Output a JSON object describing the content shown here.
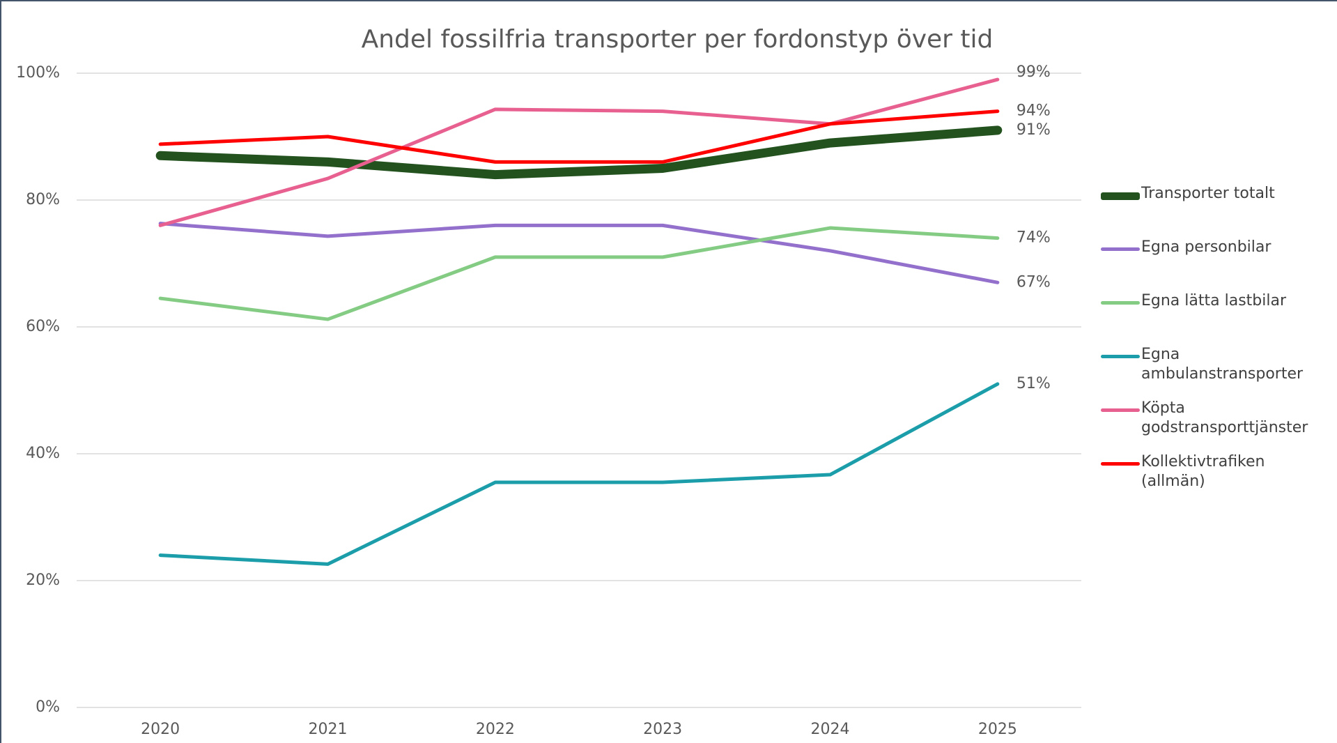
{
  "chart_data": {
    "type": "line",
    "title": "Andel fossilfria transporter per fordonstyp över tid",
    "categories": [
      "2020",
      "2021",
      "2022",
      "2023",
      "2024",
      "2025"
    ],
    "series": [
      {
        "name": "Transporter totalt",
        "color": "#23521f",
        "values": [
          87,
          86,
          84,
          85,
          89,
          91
        ],
        "value_labels": [
          null,
          null,
          null,
          null,
          null,
          "91%"
        ]
      },
      {
        "name": "Egna personbilar",
        "color": "#9370cc",
        "values": [
          76.3,
          74.3,
          76,
          76,
          72,
          67
        ],
        "value_labels": [
          null,
          null,
          null,
          null,
          null,
          "67%"
        ]
      },
      {
        "name": "Egna lätta lastbilar",
        "color": "#84cc84",
        "values": [
          64.5,
          61.2,
          71,
          71,
          75.6,
          74
        ],
        "value_labels": [
          null,
          null,
          null,
          null,
          null,
          "74%"
        ]
      },
      {
        "name": "Egna ambulanstransporter",
        "color": "#1b9eaa",
        "values": [
          24,
          22.6,
          35.5,
          35.5,
          36.7,
          51
        ],
        "value_labels": [
          null,
          null,
          null,
          null,
          null,
          "51%"
        ]
      },
      {
        "name": "Köpta godstransporttjänster",
        "color": "#e8608f",
        "values": [
          76,
          83.4,
          94.3,
          94,
          92,
          99
        ],
        "value_labels": [
          null,
          null,
          null,
          null,
          null,
          "99%"
        ]
      },
      {
        "name": "Kollektivtrafiken (allmän)",
        "color": "#ff0000",
        "values": [
          88.8,
          90,
          86,
          86,
          92,
          94
        ],
        "value_labels": [
          null,
          null,
          null,
          null,
          null,
          "94%"
        ]
      }
    ],
    "ylim": [
      0,
      100
    ],
    "yticks": [
      {
        "value": 0,
        "label": "0%"
      },
      {
        "value": 20,
        "label": "20%"
      },
      {
        "value": 40,
        "label": "40%"
      },
      {
        "value": 60,
        "label": "60%"
      },
      {
        "value": 80,
        "label": "80%"
      },
      {
        "value": 100,
        "label": "100%"
      }
    ],
    "grid": true,
    "legend": "right"
  }
}
